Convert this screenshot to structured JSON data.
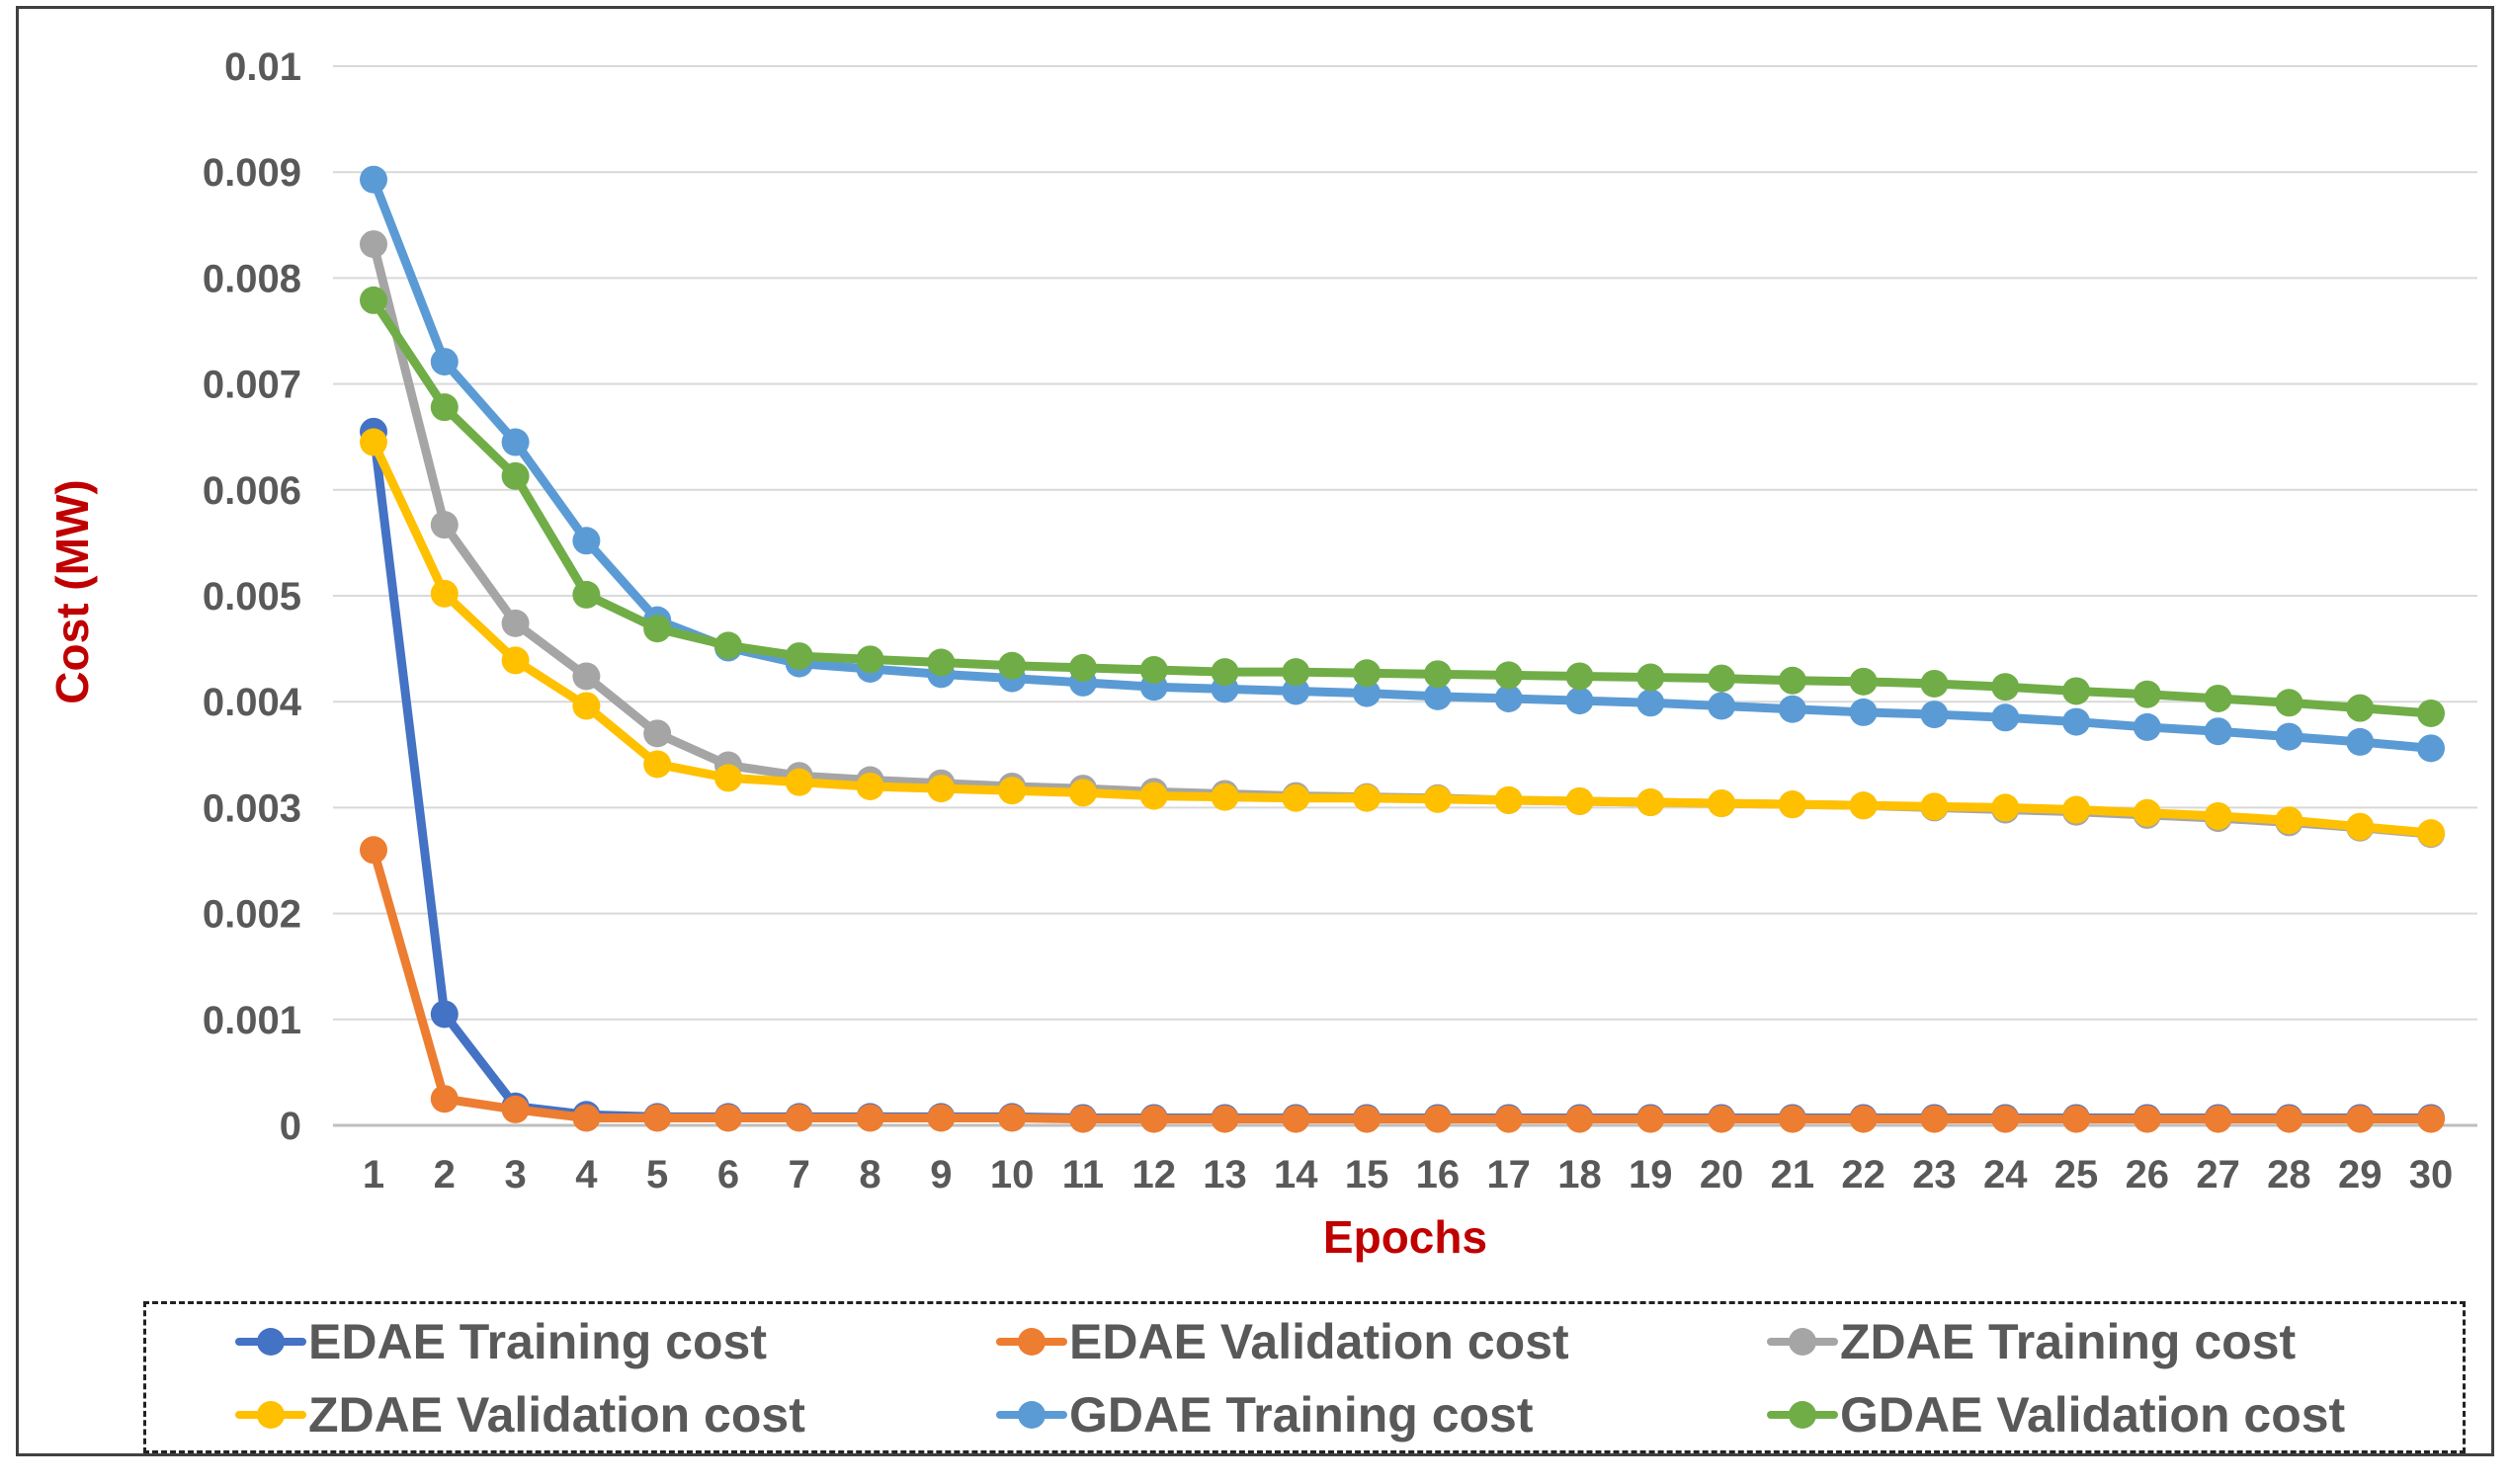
{
  "chart_data": {
    "type": "line",
    "xlabel": "Epochs",
    "ylabel": "Cost (MW)",
    "ylim": [
      0,
      0.01
    ],
    "yticks": [
      "0",
      "0.001",
      "0.002",
      "0.003",
      "0.004",
      "0.005",
      "0.006",
      "0.007",
      "0.008",
      "0.009",
      "0.01"
    ],
    "x": [
      1,
      2,
      3,
      4,
      5,
      6,
      7,
      8,
      9,
      10,
      11,
      12,
      13,
      14,
      15,
      16,
      17,
      18,
      19,
      20,
      21,
      22,
      23,
      24,
      25,
      26,
      27,
      28,
      29,
      30
    ],
    "grid": true,
    "legend_position": "bottom",
    "series": [
      {
        "name": "EDAE Training cost",
        "color": "#4472C4",
        "values": [
          0.00655,
          0.00105,
          0.00018,
          0.0001,
          8e-05,
          8e-05,
          8e-05,
          8e-05,
          8e-05,
          8e-05,
          7e-05,
          7e-05,
          7e-05,
          7e-05,
          7e-05,
          7e-05,
          7e-05,
          7e-05,
          7e-05,
          7e-05,
          7e-05,
          7e-05,
          7e-05,
          7e-05,
          7e-05,
          7e-05,
          7e-05,
          7e-05,
          7e-05,
          7e-05
        ]
      },
      {
        "name": "EDAE Validation cost",
        "color": "#ED7D31",
        "values": [
          0.0026,
          0.00025,
          0.00015,
          7e-05,
          7e-05,
          7e-05,
          7e-05,
          7e-05,
          7e-05,
          7e-05,
          6e-05,
          6e-05,
          6e-05,
          6e-05,
          6e-05,
          6e-05,
          6e-05,
          6e-05,
          6e-05,
          6e-05,
          6e-05,
          6e-05,
          6e-05,
          6e-05,
          6e-05,
          6e-05,
          6e-05,
          6e-05,
          6e-05,
          6e-05
        ]
      },
      {
        "name": "ZDAE Training cost",
        "color": "#A5A5A5",
        "values": [
          0.00832,
          0.00567,
          0.00474,
          0.00424,
          0.0037,
          0.0034,
          0.0033,
          0.00326,
          0.00323,
          0.0032,
          0.00318,
          0.00315,
          0.00313,
          0.00311,
          0.0031,
          0.00309,
          0.00307,
          0.00306,
          0.00305,
          0.00304,
          0.00303,
          0.00302,
          0.003,
          0.00298,
          0.00296,
          0.00293,
          0.0029,
          0.00286,
          0.00281,
          0.00275
        ]
      },
      {
        "name": "ZDAE Validation cost",
        "color": "#FFC000",
        "values": [
          0.00645,
          0.00502,
          0.00439,
          0.00396,
          0.00341,
          0.00328,
          0.00324,
          0.0032,
          0.00318,
          0.00316,
          0.00314,
          0.00311,
          0.0031,
          0.00309,
          0.00309,
          0.00308,
          0.00307,
          0.00306,
          0.00305,
          0.00304,
          0.00303,
          0.00302,
          0.00301,
          0.003,
          0.00298,
          0.00295,
          0.00292,
          0.00288,
          0.00282,
          0.00276
        ]
      },
      {
        "name": "GDAE Training cost",
        "color": "#5B9BD5",
        "values": [
          0.00893,
          0.00721,
          0.00645,
          0.00552,
          0.00477,
          0.00451,
          0.00436,
          0.00431,
          0.00426,
          0.00422,
          0.00418,
          0.00414,
          0.00412,
          0.0041,
          0.00408,
          0.00405,
          0.00403,
          0.00401,
          0.00399,
          0.00396,
          0.00393,
          0.0039,
          0.00388,
          0.00385,
          0.00381,
          0.00376,
          0.00372,
          0.00367,
          0.00362,
          0.00356
        ]
      },
      {
        "name": "GDAE Validation cost",
        "color": "#70AD47",
        "values": [
          0.00779,
          0.00678,
          0.00613,
          0.00501,
          0.00469,
          0.00453,
          0.00443,
          0.0044,
          0.00437,
          0.00434,
          0.00432,
          0.0043,
          0.00428,
          0.00428,
          0.00427,
          0.00426,
          0.00425,
          0.00424,
          0.00423,
          0.00422,
          0.0042,
          0.00419,
          0.00417,
          0.00414,
          0.0041,
          0.00407,
          0.00403,
          0.00399,
          0.00394,
          0.00389
        ]
      }
    ]
  }
}
